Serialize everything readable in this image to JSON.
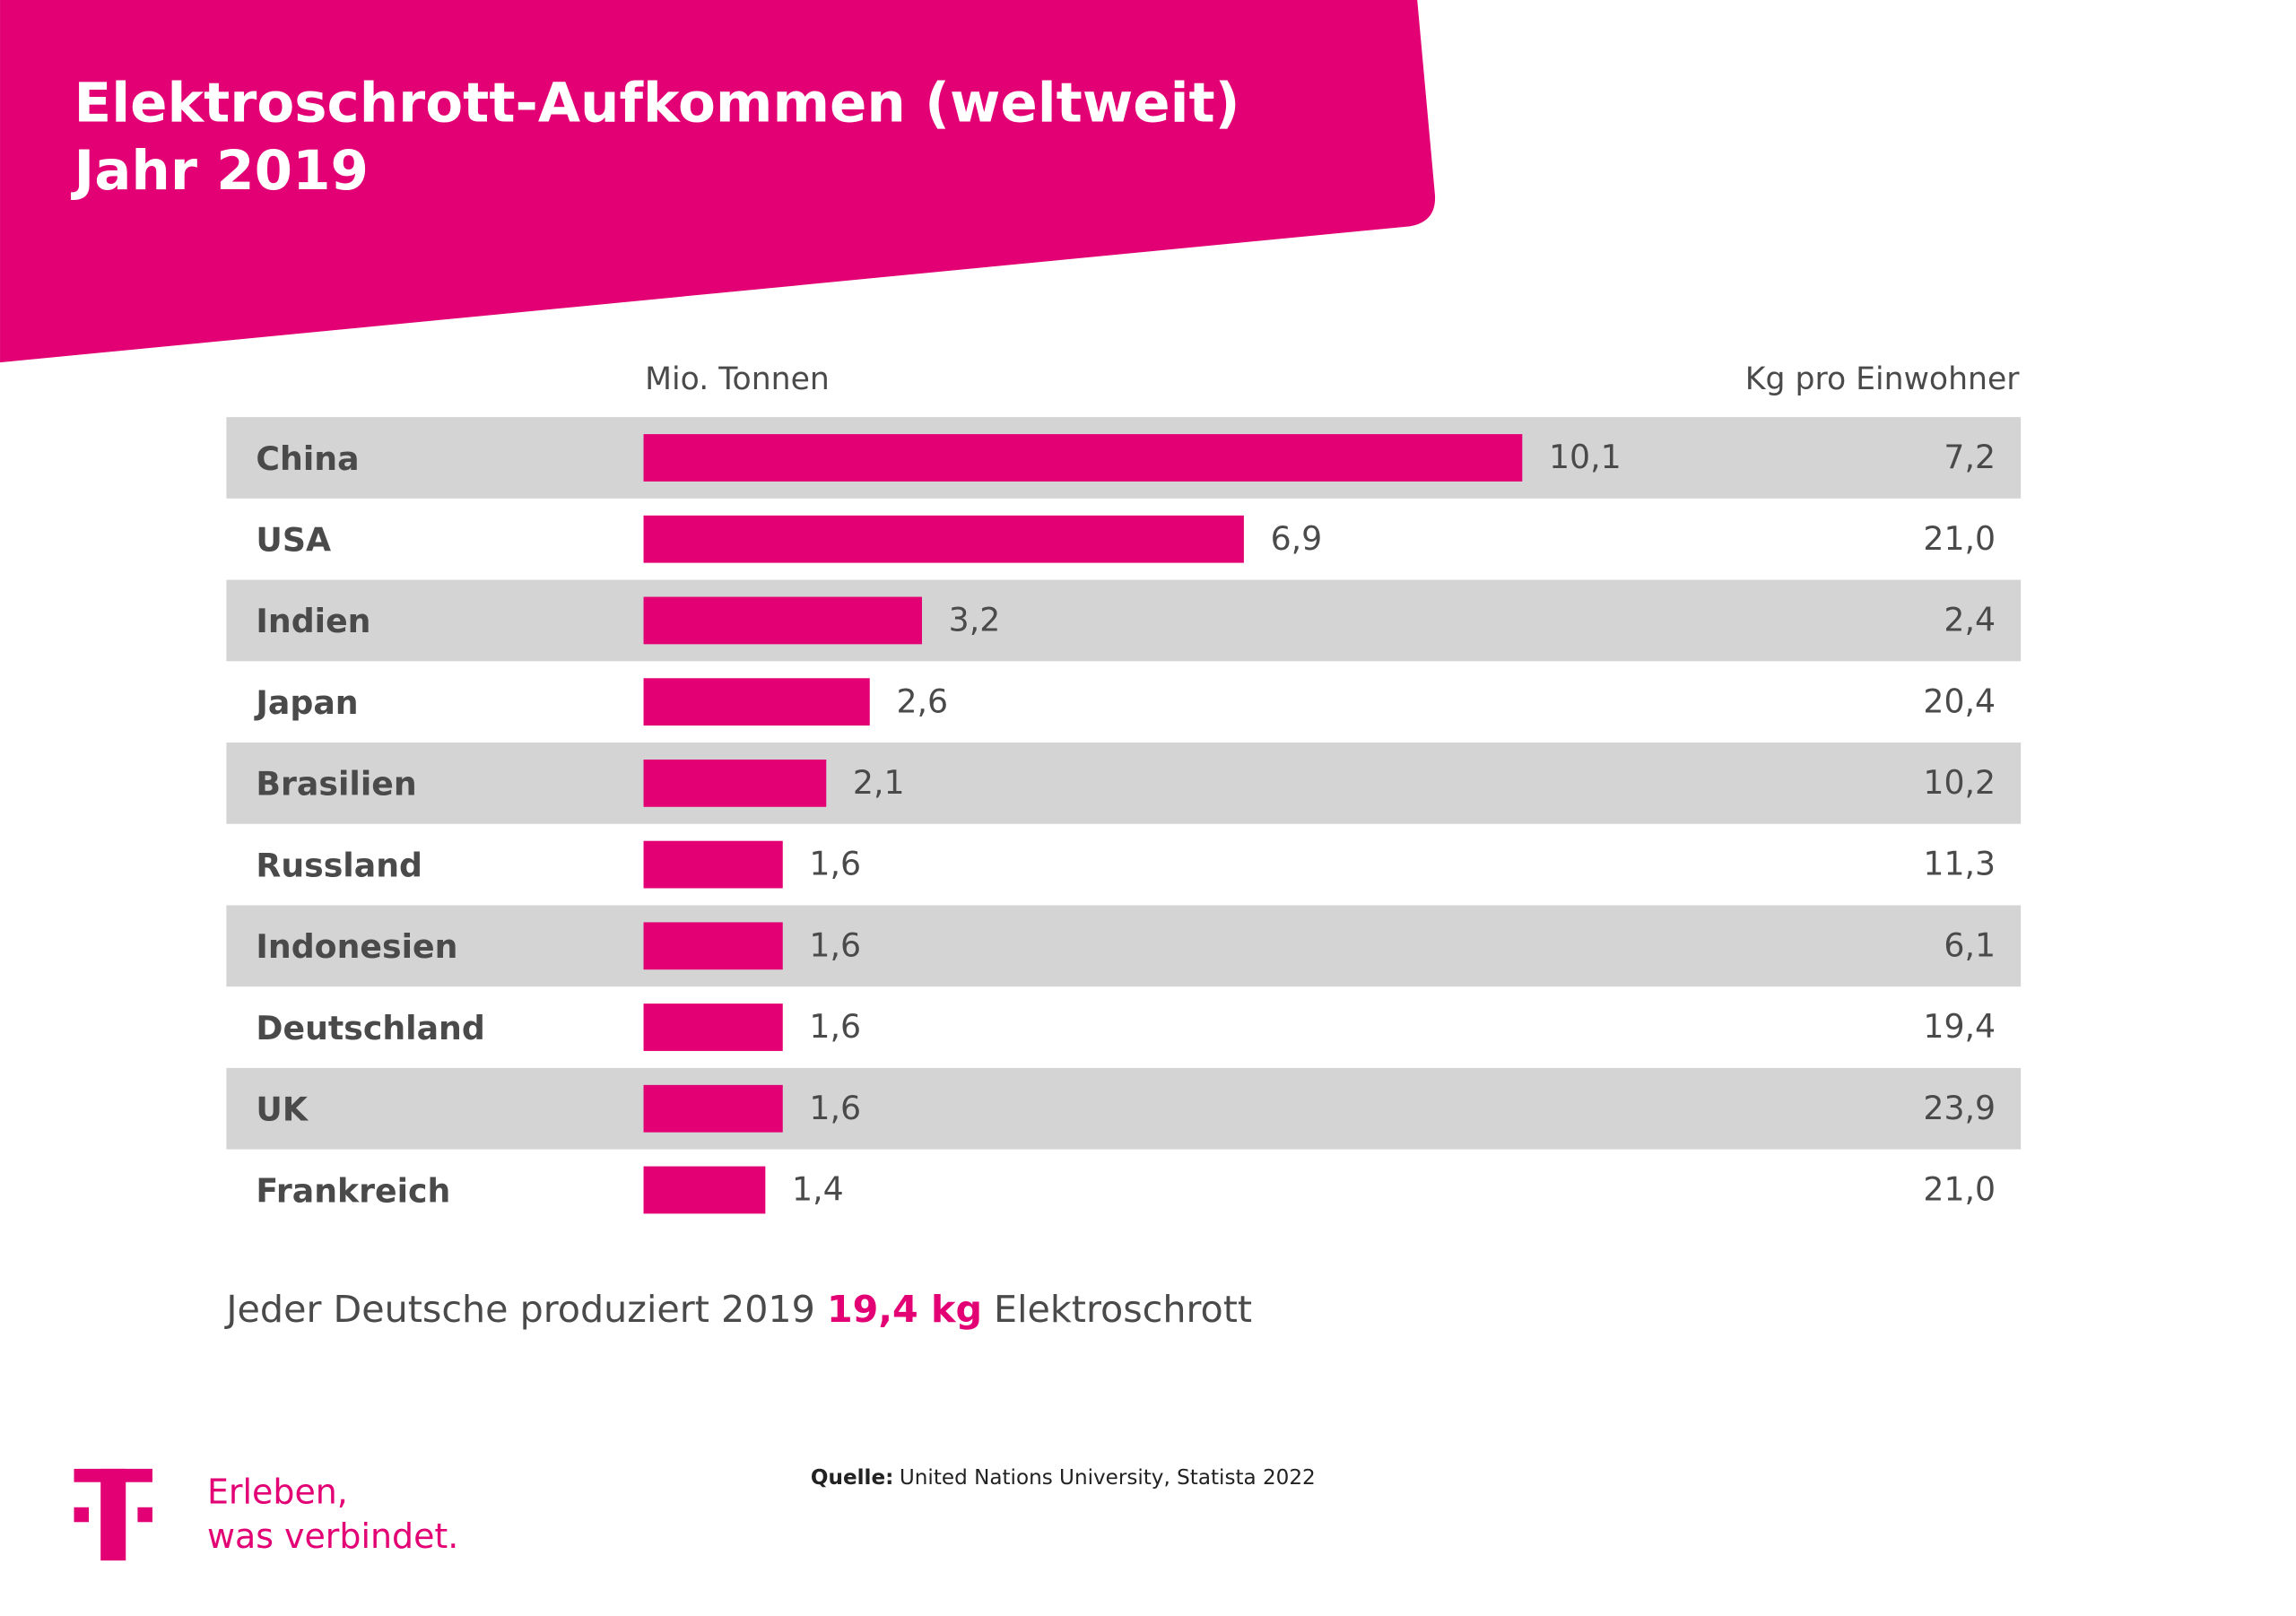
{
  "header": {
    "title_lines": [
      "Elektroschrott-Aufkommen (weltweit)",
      "Jahr 2019"
    ]
  },
  "chart_data": {
    "type": "bar",
    "orientation": "horizontal",
    "categories": [
      "China",
      "USA",
      "Indien",
      "Japan",
      "Brasilien",
      "Russland",
      "Indonesien",
      "Deutschland",
      "UK",
      "Frankreich"
    ],
    "series": [
      {
        "name": "Mio. Tonnen",
        "color": "#e20074",
        "values": [
          10.1,
          6.9,
          3.2,
          2.6,
          2.1,
          1.6,
          1.6,
          1.6,
          1.6,
          1.4
        ],
        "value_labels": [
          "10,1",
          "6,9",
          "3,2",
          "2,6",
          "2,1",
          "1,6",
          "1,6",
          "1,6",
          "1,6",
          "1,4"
        ]
      },
      {
        "name": "Kg pro Einwohner",
        "color": "#4a4a4a",
        "values": [
          7.2,
          21.0,
          2.4,
          20.4,
          10.2,
          11.3,
          6.1,
          19.4,
          23.9,
          21.0
        ],
        "value_labels": [
          "7,2",
          "21,0",
          "2,4",
          "20,4",
          "10,2",
          "11,3",
          "6,1",
          "19,4",
          "23,9",
          "21,0"
        ]
      }
    ],
    "row_stripe_color": "#d4d4d4"
  },
  "footer": {
    "sentence": [
      "Jeder Deutsche produziert 2019 ",
      "19,4 kg",
      " Elektroschrott"
    ],
    "source_label": "Quelle:",
    "source": "United Nations University, Statista 2022",
    "slogan": [
      "Erleben,",
      "was verbindet."
    ]
  }
}
